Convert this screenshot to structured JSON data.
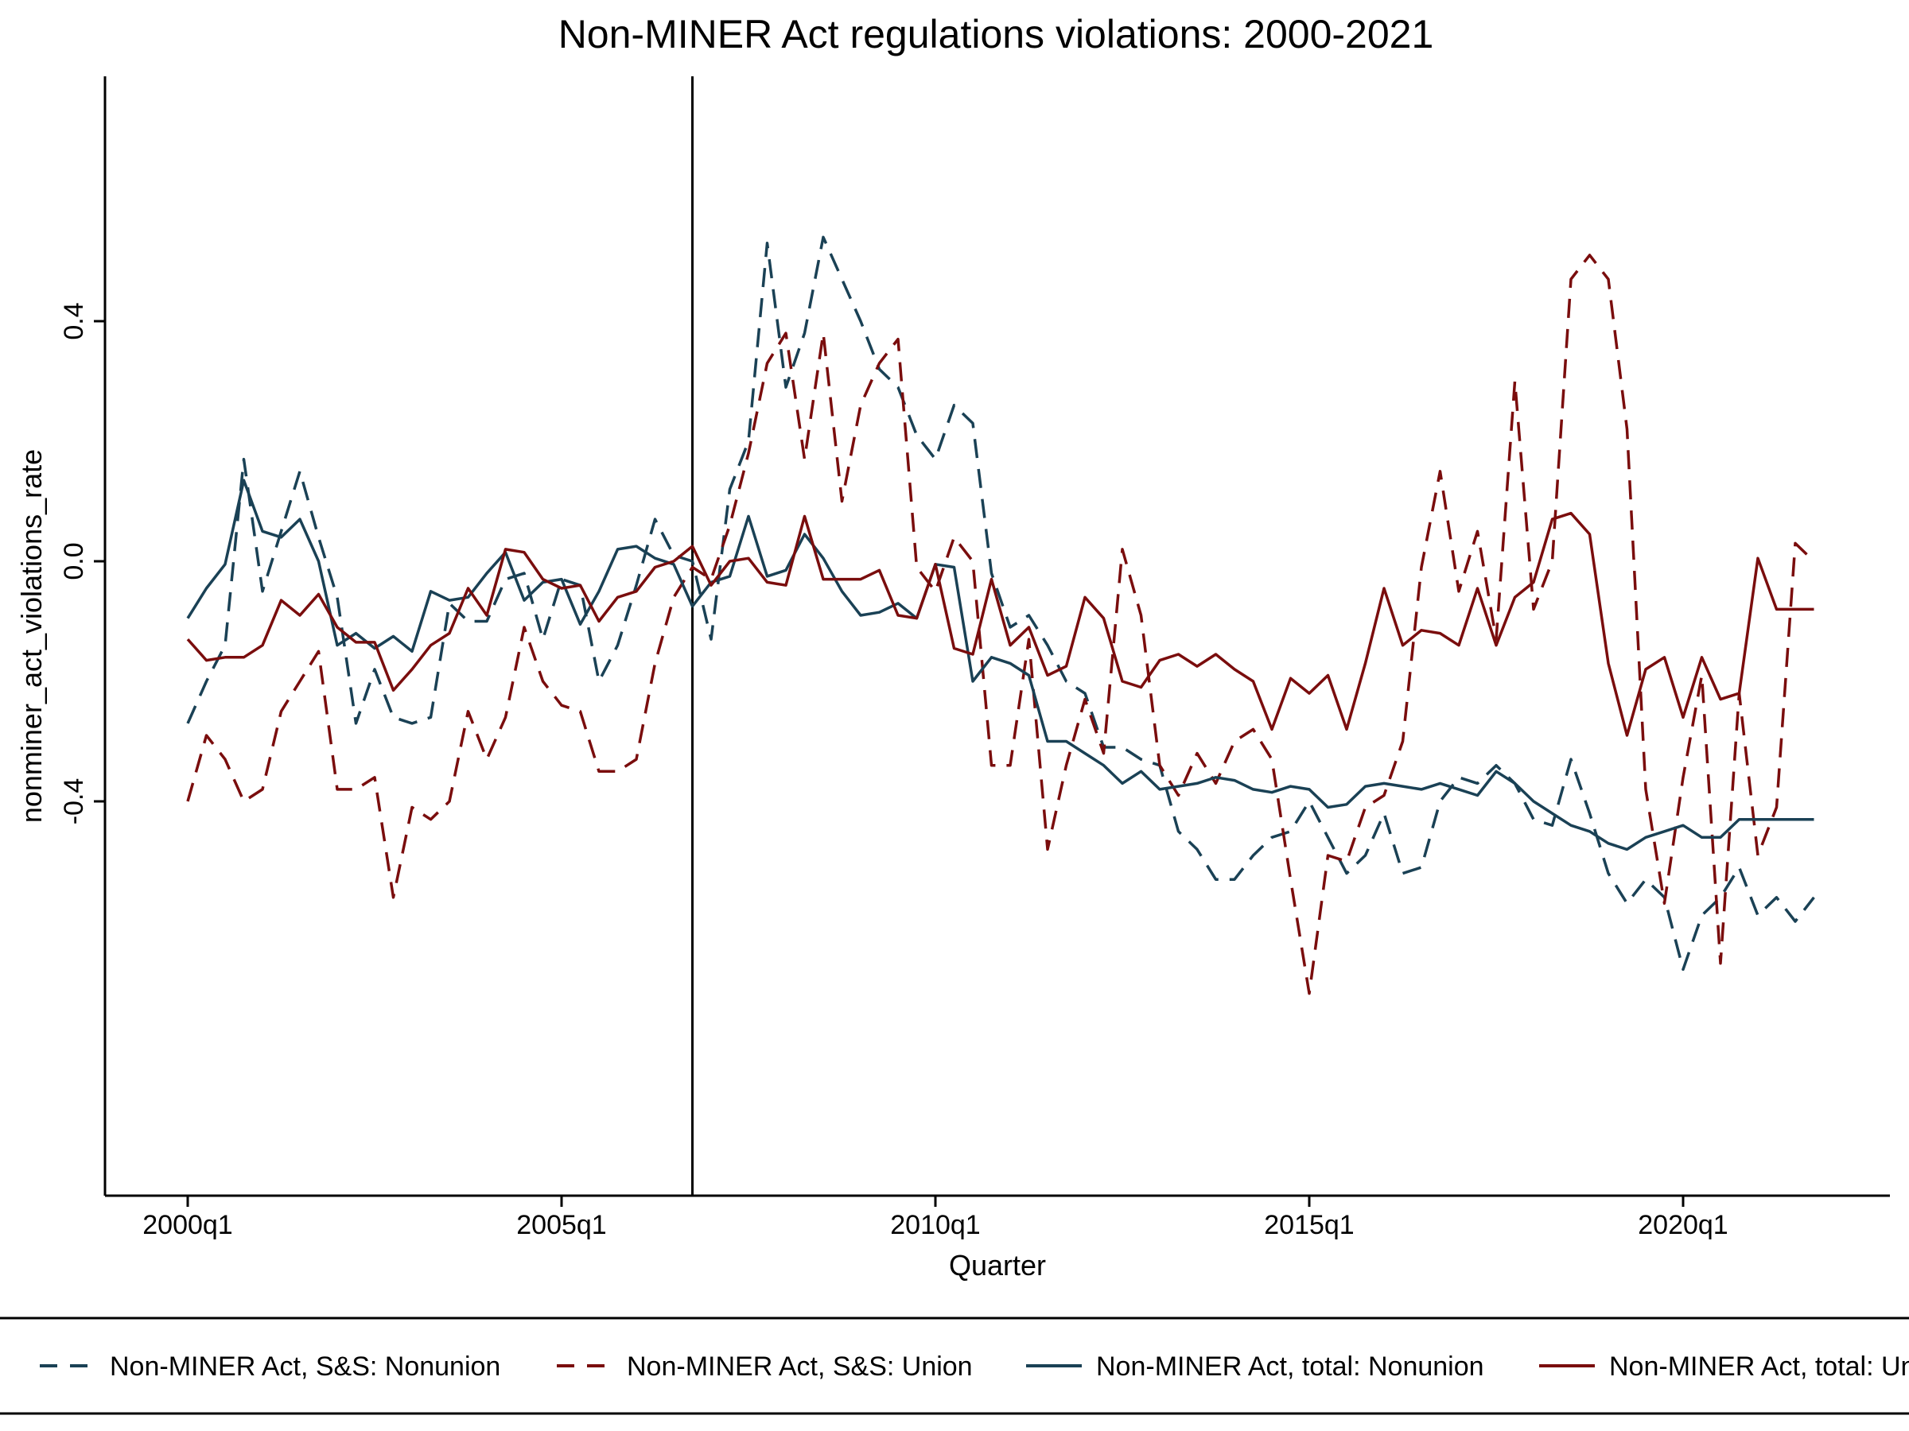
{
  "chart_data": {
    "type": "line",
    "title": "Non-MINER Act regulations violations: 2000-2021",
    "xlabel": "Quarter",
    "ylabel": "nonminer_act_violations_rate",
    "x_start": "2000q1",
    "x_end": "2021q4",
    "xticks": [
      "2000q1",
      "2005q1",
      "2010q1",
      "2015q1",
      "2020q1"
    ],
    "yticks": [
      "-0.4",
      "0.0",
      "0.4"
    ],
    "ylim": [
      -0.79,
      0.6
    ],
    "reference_line_x": "2006q4",
    "grid": false,
    "legend_position": "bottom",
    "series": [
      {
        "name": "Non-MINER Act, S&S: Nonunion",
        "color": "#1a4155",
        "dash": "dashed",
        "values": [
          -0.27,
          -0.2,
          -0.14,
          0.17,
          -0.05,
          0.05,
          0.15,
          0.04,
          -0.06,
          -0.27,
          -0.18,
          -0.26,
          -0.27,
          -0.26,
          -0.07,
          -0.1,
          -0.1,
          -0.03,
          -0.02,
          -0.13,
          -0.03,
          -0.04,
          -0.2,
          -0.14,
          -0.04,
          0.07,
          0.01,
          0.0,
          -0.13,
          0.12,
          0.2,
          0.53,
          0.29,
          0.38,
          0.54,
          0.47,
          0.4,
          0.32,
          0.29,
          0.21,
          0.17,
          0.26,
          0.23,
          -0.02,
          -0.11,
          -0.09,
          -0.14,
          -0.2,
          -0.22,
          -0.31,
          -0.31,
          -0.33,
          -0.34,
          -0.45,
          -0.48,
          -0.53,
          -0.53,
          -0.49,
          -0.46,
          -0.45,
          -0.4,
          -0.46,
          -0.52,
          -0.49,
          -0.42,
          -0.52,
          -0.51,
          -0.4,
          -0.36,
          -0.37,
          -0.34,
          -0.37,
          -0.43,
          -0.44,
          -0.33,
          -0.42,
          -0.52,
          -0.57,
          -0.53,
          -0.56,
          -0.68,
          -0.59,
          -0.56,
          -0.51,
          -0.59,
          -0.56,
          -0.6,
          -0.56
        ]
      },
      {
        "name": "Non-MINER Act, S&S: Union",
        "color": "#7a0d0d",
        "dash": "dashed",
        "values": [
          -0.4,
          -0.29,
          -0.33,
          -0.4,
          -0.38,
          -0.25,
          -0.2,
          -0.15,
          -0.38,
          -0.38,
          -0.36,
          -0.56,
          -0.41,
          -0.43,
          -0.4,
          -0.25,
          -0.33,
          -0.26,
          -0.11,
          -0.2,
          -0.24,
          -0.25,
          -0.35,
          -0.35,
          -0.33,
          -0.17,
          -0.06,
          -0.01,
          -0.03,
          0.06,
          0.18,
          0.33,
          0.38,
          0.17,
          0.38,
          0.1,
          0.26,
          0.33,
          0.37,
          -0.01,
          -0.05,
          0.04,
          0.0,
          -0.34,
          -0.34,
          -0.13,
          -0.48,
          -0.34,
          -0.23,
          -0.32,
          0.02,
          -0.09,
          -0.34,
          -0.39,
          -0.32,
          -0.37,
          -0.3,
          -0.28,
          -0.33,
          -0.53,
          -0.72,
          -0.49,
          -0.5,
          -0.41,
          -0.39,
          -0.3,
          -0.01,
          0.15,
          -0.05,
          0.05,
          -0.13,
          0.3,
          -0.08,
          0.0,
          0.47,
          0.51,
          0.47,
          0.22,
          -0.38,
          -0.57,
          -0.36,
          -0.19,
          -0.67,
          -0.22,
          -0.49,
          -0.41,
          0.03,
          0.0
        ]
      },
      {
        "name": "Non-MINER Act, total: Nonunion",
        "color": "#1a4155",
        "dash": "solid",
        "values": [
          -0.095,
          -0.045,
          -0.005,
          0.135,
          0.05,
          0.04,
          0.07,
          0.0,
          -0.14,
          -0.12,
          -0.145,
          -0.125,
          -0.15,
          -0.05,
          -0.065,
          -0.06,
          -0.02,
          0.015,
          -0.065,
          -0.035,
          -0.03,
          -0.105,
          -0.05,
          0.02,
          0.025,
          0.005,
          -0.005,
          -0.075,
          -0.035,
          -0.025,
          0.075,
          -0.025,
          -0.015,
          0.045,
          0.005,
          -0.05,
          -0.09,
          -0.085,
          -0.07,
          -0.095,
          -0.005,
          -0.01,
          -0.2,
          -0.16,
          -0.17,
          -0.19,
          -0.3,
          -0.3,
          -0.32,
          -0.34,
          -0.37,
          -0.35,
          -0.38,
          -0.375,
          -0.37,
          -0.36,
          -0.365,
          -0.38,
          -0.385,
          -0.375,
          -0.38,
          -0.41,
          -0.405,
          -0.375,
          -0.37,
          -0.375,
          -0.38,
          -0.37,
          -0.38,
          -0.39,
          -0.35,
          -0.37,
          -0.4,
          -0.42,
          -0.44,
          -0.45,
          -0.47,
          -0.48,
          -0.46,
          -0.45,
          -0.44,
          -0.46,
          -0.46,
          -0.43,
          -0.43,
          -0.43,
          -0.43,
          -0.43
        ]
      },
      {
        "name": "Non-MINER Act, total: Union",
        "color": "#7a0d0d",
        "dash": "solid",
        "values": [
          -0.13,
          -0.165,
          -0.16,
          -0.16,
          -0.14,
          -0.065,
          -0.09,
          -0.055,
          -0.11,
          -0.135,
          -0.135,
          -0.215,
          -0.18,
          -0.14,
          -0.12,
          -0.045,
          -0.09,
          0.02,
          0.015,
          -0.03,
          -0.045,
          -0.04,
          -0.1,
          -0.06,
          -0.05,
          -0.01,
          0.0,
          0.025,
          -0.04,
          0.0,
          0.005,
          -0.035,
          -0.04,
          0.075,
          -0.03,
          -0.03,
          -0.03,
          -0.015,
          -0.09,
          -0.095,
          -0.005,
          -0.145,
          -0.155,
          -0.03,
          -0.14,
          -0.11,
          -0.19,
          -0.175,
          -0.06,
          -0.095,
          -0.2,
          -0.21,
          -0.165,
          -0.155,
          -0.175,
          -0.155,
          -0.18,
          -0.2,
          -0.28,
          -0.195,
          -0.22,
          -0.19,
          -0.28,
          -0.17,
          -0.045,
          -0.14,
          -0.115,
          -0.12,
          -0.14,
          -0.045,
          -0.14,
          -0.06,
          -0.035,
          0.07,
          0.08,
          0.045,
          -0.17,
          -0.29,
          -0.18,
          -0.16,
          -0.26,
          -0.16,
          -0.23,
          -0.22,
          0.005,
          -0.08,
          -0.08,
          -0.08
        ]
      }
    ]
  }
}
